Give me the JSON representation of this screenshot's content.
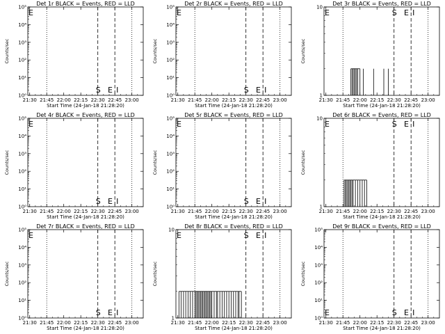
{
  "chart_data": [
    {
      "type": "line",
      "title": "Det 1r BLACK = Events, RED = LLD",
      "xlabel": "Start Time (24-Jan-18 21:28:20)",
      "ylabel": "Counts/sec",
      "x_ticks": [
        "21:30",
        "21:45",
        "22:00",
        "22:15",
        "22:30",
        "22:45",
        "23:00"
      ],
      "y_scale": "log",
      "y_ticks": [
        "10⁰",
        "10¹",
        "10²",
        "10³",
        "10⁴",
        "10⁵"
      ],
      "ylim": [
        1,
        100000
      ],
      "dotted_lines": [
        "21:45",
        "23:00"
      ],
      "dashed_lines": [
        "22:30",
        "22:45"
      ],
      "marker_E_top": true,
      "marker_S": "S",
      "marker_E": "E",
      "marker_I": "I",
      "events": []
    },
    {
      "type": "line",
      "title": "Det 2r BLACK = Events, RED = LLD",
      "xlabel": "Start Time (24-Jan-18 21:28:20)",
      "ylabel": "Counts/sec",
      "x_ticks": [
        "21:30",
        "21:45",
        "22:00",
        "22:15",
        "22:30",
        "22:45",
        "23:00"
      ],
      "y_scale": "log",
      "y_ticks": [
        "10⁰",
        "10¹",
        "10²",
        "10³",
        "10⁴",
        "10⁵"
      ],
      "ylim": [
        1,
        100000
      ],
      "dotted_lines": [
        "21:45",
        "23:00"
      ],
      "dashed_lines": [
        "22:30",
        "22:45"
      ],
      "marker_E_top": true,
      "marker_S": "S",
      "marker_E": "E",
      "marker_I": "I",
      "events": []
    },
    {
      "type": "bar",
      "title": "Det 3r BLACK = Events, RED = LLD",
      "xlabel": "Start Time (24-Jan-18 21:28:20)",
      "ylabel": "Counts/sec",
      "x_ticks": [
        "21:30",
        "21:45",
        "22:00",
        "22:15",
        "22:30",
        "22:45",
        "23:00"
      ],
      "y_scale": "log",
      "y_ticks": [
        "1",
        "10"
      ],
      "ylim": [
        1,
        10
      ],
      "dotted_lines": [
        "21:45",
        "23:00"
      ],
      "dashed_lines": [
        "22:30",
        "22:45"
      ],
      "marker_E_top": true,
      "marker_S": "S",
      "marker_E": "E",
      "marker_I": "I",
      "events": [
        {
          "t": "21:52",
          "v": 2
        },
        {
          "t": "21:53",
          "v": 2
        },
        {
          "t": "21:54",
          "v": 2
        },
        {
          "t": "21:55",
          "v": 2
        },
        {
          "t": "21:56",
          "v": 2
        },
        {
          "t": "21:57",
          "v": 2
        },
        {
          "t": "21:58",
          "v": 2
        },
        {
          "t": "22:00",
          "v": 2
        },
        {
          "t": "22:03",
          "v": 2
        },
        {
          "t": "22:12",
          "v": 2
        },
        {
          "t": "22:21",
          "v": 2
        },
        {
          "t": "22:25",
          "v": 2
        }
      ]
    },
    {
      "type": "line",
      "title": "Det 4r BLACK = Events, RED = LLD",
      "xlabel": "Start Time (24-Jan-18 21:28:20)",
      "ylabel": "Counts/sec",
      "x_ticks": [
        "21:30",
        "21:45",
        "22:00",
        "22:15",
        "22:30",
        "22:45",
        "23:00"
      ],
      "y_scale": "log",
      "y_ticks": [
        "10⁰",
        "10¹",
        "10²",
        "10³",
        "10⁴",
        "10⁵"
      ],
      "ylim": [
        1,
        100000
      ],
      "dotted_lines": [
        "21:45",
        "23:00"
      ],
      "dashed_lines": [
        "22:30",
        "22:45"
      ],
      "marker_E_top": true,
      "marker_S": "S",
      "marker_E": "E",
      "marker_I": "I",
      "events": []
    },
    {
      "type": "line",
      "title": "Det 5r BLACK = Events, RED = LLD",
      "xlabel": "Start Time (24-Jan-18 21:28:20)",
      "ylabel": "Counts/sec",
      "x_ticks": [
        "21:30",
        "21:45",
        "22:00",
        "22:15",
        "22:30",
        "22:45",
        "23:00"
      ],
      "y_scale": "log",
      "y_ticks": [
        "10⁰",
        "10¹",
        "10²",
        "10³",
        "10⁴",
        "10⁵"
      ],
      "ylim": [
        1,
        100000
      ],
      "dotted_lines": [
        "21:45",
        "23:00"
      ],
      "dashed_lines": [
        "22:30",
        "22:45"
      ],
      "marker_E_top": true,
      "marker_S": "S",
      "marker_E": "E",
      "marker_I": "I",
      "events": []
    },
    {
      "type": "bar",
      "title": "Det 6r BLACK = Events, RED = LLD",
      "xlabel": "Start Time (24-Jan-18 21:28:20)",
      "ylabel": "Counts/sec",
      "x_ticks": [
        "21:30",
        "21:45",
        "22:00",
        "22:15",
        "22:30",
        "22:45",
        "23:00"
      ],
      "y_scale": "log",
      "y_ticks": [
        "1",
        "10"
      ],
      "ylim": [
        1,
        10
      ],
      "dotted_lines": [
        "21:45",
        "23:00"
      ],
      "dashed_lines": [
        "22:30",
        "22:45"
      ],
      "marker_E_top": true,
      "marker_S": "S",
      "marker_E": "E",
      "marker_I": "I",
      "events": [
        {
          "t": "21:46",
          "v": 2
        },
        {
          "t": "21:47",
          "v": 2
        },
        {
          "t": "21:48",
          "v": 2
        },
        {
          "t": "21:49",
          "v": 2
        },
        {
          "t": "21:50",
          "v": 2
        },
        {
          "t": "21:51",
          "v": 2
        },
        {
          "t": "21:52",
          "v": 2
        },
        {
          "t": "21:53",
          "v": 2
        },
        {
          "t": "21:54",
          "v": 2
        },
        {
          "t": "21:56",
          "v": 2
        },
        {
          "t": "21:58",
          "v": 2
        },
        {
          "t": "22:00",
          "v": 2
        },
        {
          "t": "22:02",
          "v": 2
        },
        {
          "t": "22:04",
          "v": 2
        },
        {
          "t": "22:06",
          "v": 2
        }
      ]
    },
    {
      "type": "line",
      "title": "Det 7r BLACK = Events, RED = LLD",
      "xlabel": "Start Time (24-Jan-18 21:28:20)",
      "ylabel": "Counts/sec",
      "x_ticks": [
        "21:30",
        "21:45",
        "22:00",
        "22:15",
        "22:30",
        "22:45",
        "23:00"
      ],
      "y_scale": "log",
      "y_ticks": [
        "10⁰",
        "10¹",
        "10²",
        "10³",
        "10⁴",
        "10⁵"
      ],
      "ylim": [
        1,
        100000
      ],
      "dotted_lines": [
        "21:45",
        "23:00"
      ],
      "dashed_lines": [
        "22:30",
        "22:45"
      ],
      "marker_E_top": true,
      "marker_S": "S",
      "marker_E": "E",
      "marker_I": "I",
      "events": []
    },
    {
      "type": "bar",
      "title": "Det 8r BLACK = Events, RED = LLD",
      "xlabel": "Start Time (24-Jan-18 21:28:20)",
      "ylabel": "Counts/sec",
      "x_ticks": [
        "21:30",
        "21:45",
        "22:00",
        "22:15",
        "22:30",
        "22:45",
        "23:00"
      ],
      "y_scale": "log",
      "y_ticks": [
        "1",
        "10"
      ],
      "ylim": [
        1,
        10
      ],
      "dotted_lines": [
        "21:45",
        "23:00"
      ],
      "dashed_lines": [
        "22:30",
        "22:45"
      ],
      "marker_E_top": true,
      "marker_S": "S",
      "marker_E": "E",
      "marker_I": "I",
      "events": [
        {
          "t": "21:31",
          "v": 2
        },
        {
          "t": "21:33",
          "v": 2
        },
        {
          "t": "21:35",
          "v": 2
        },
        {
          "t": "21:37",
          "v": 2
        },
        {
          "t": "21:39",
          "v": 2
        },
        {
          "t": "21:41",
          "v": 2
        },
        {
          "t": "21:43",
          "v": 2
        },
        {
          "t": "21:45",
          "v": 2
        },
        {
          "t": "21:46",
          "v": 2
        },
        {
          "t": "21:47",
          "v": 2
        },
        {
          "t": "21:48",
          "v": 2
        },
        {
          "t": "21:49",
          "v": 2
        },
        {
          "t": "21:50",
          "v": 2
        },
        {
          "t": "21:51",
          "v": 2
        },
        {
          "t": "21:52",
          "v": 2
        },
        {
          "t": "21:53",
          "v": 2
        },
        {
          "t": "21:54",
          "v": 2
        },
        {
          "t": "21:55",
          "v": 2
        },
        {
          "t": "21:56",
          "v": 2
        },
        {
          "t": "21:57",
          "v": 2
        },
        {
          "t": "21:58",
          "v": 2
        },
        {
          "t": "21:59",
          "v": 2
        },
        {
          "t": "22:00",
          "v": 2
        },
        {
          "t": "22:02",
          "v": 2
        },
        {
          "t": "22:04",
          "v": 2
        },
        {
          "t": "22:05",
          "v": 2
        },
        {
          "t": "22:07",
          "v": 2
        },
        {
          "t": "22:09",
          "v": 2
        },
        {
          "t": "22:11",
          "v": 2
        },
        {
          "t": "22:13",
          "v": 2
        },
        {
          "t": "22:15",
          "v": 2
        },
        {
          "t": "22:17",
          "v": 2
        },
        {
          "t": "22:19",
          "v": 2
        },
        {
          "t": "22:21",
          "v": 2
        },
        {
          "t": "22:23",
          "v": 2
        },
        {
          "t": "22:24",
          "v": 2
        },
        {
          "t": "22:26",
          "v": 2
        }
      ]
    },
    {
      "type": "line",
      "title": "Det 9r BLACK = Events, RED = LLD",
      "xlabel": "Start Time (24-Jan-18 21:28:20)",
      "ylabel": "Counts/sec",
      "x_ticks": [
        "21:30",
        "21:45",
        "22:00",
        "22:15",
        "22:30",
        "22:45",
        "23:00"
      ],
      "y_scale": "log",
      "y_ticks": [
        "10⁰",
        "10¹",
        "10²",
        "10³",
        "10⁴",
        "10⁵"
      ],
      "ylim": [
        1,
        100000
      ],
      "dotted_lines": [
        "21:45",
        "23:00"
      ],
      "dashed_lines": [
        "22:30",
        "22:45"
      ],
      "marker_E_top": false,
      "marker_S": "S",
      "marker_E": "E",
      "marker_I": "I",
      "events": []
    }
  ]
}
